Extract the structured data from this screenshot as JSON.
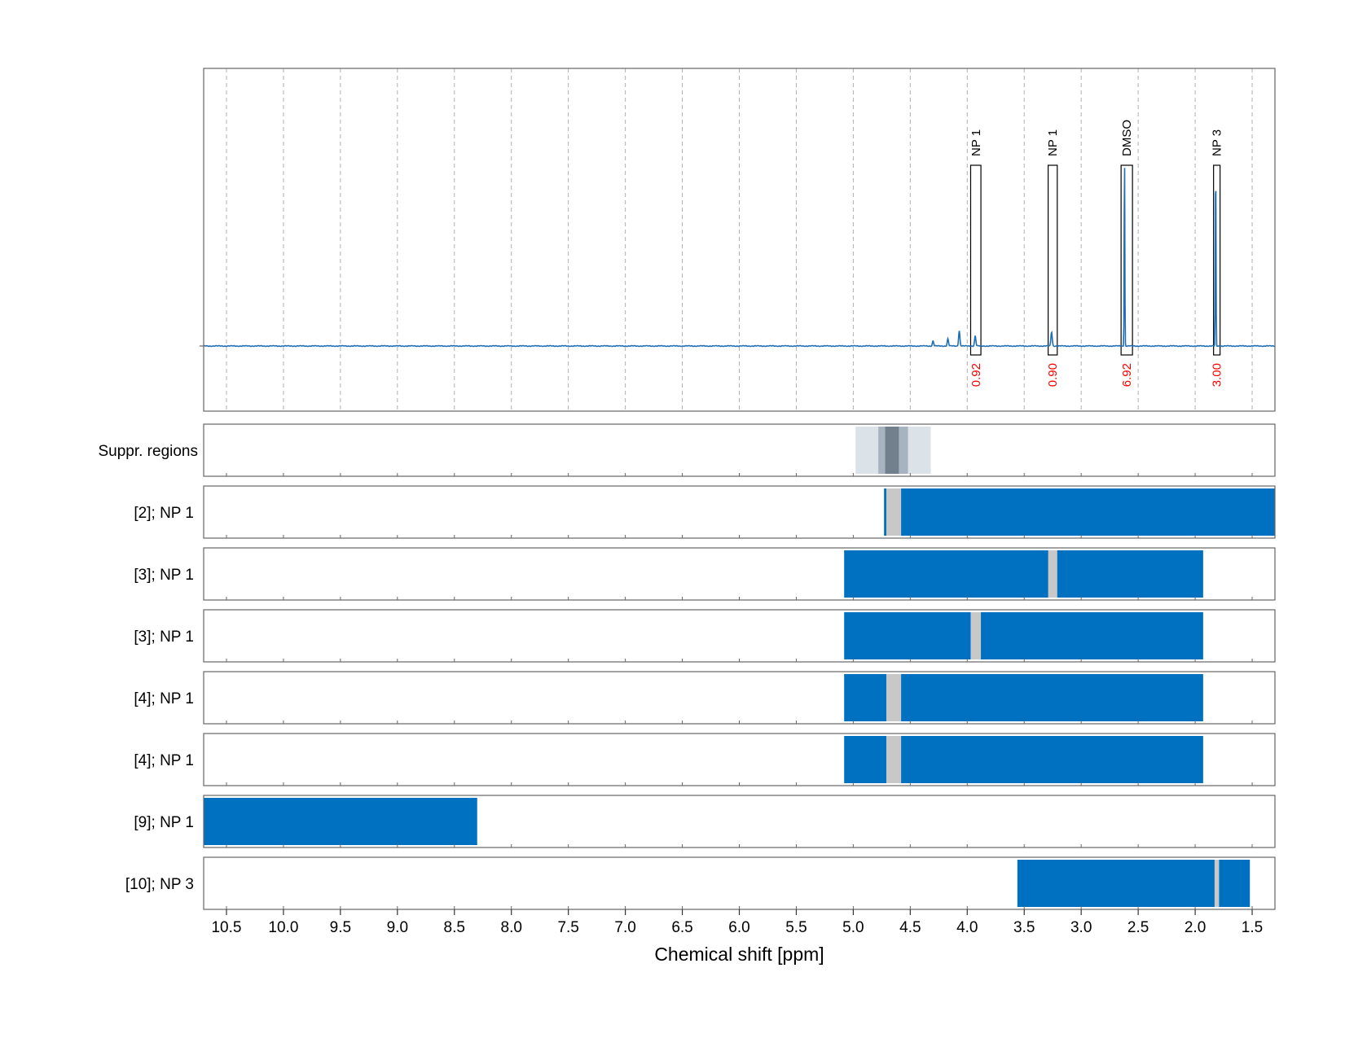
{
  "chart_data": {
    "type": "line",
    "xlabel": "Chemical shift [ppm]",
    "xlim": [
      10.7,
      1.3
    ],
    "x_ticks": [
      "10.5",
      "10.0",
      "9.5",
      "9.0",
      "8.5",
      "8.0",
      "7.5",
      "7.0",
      "6.5",
      "6.0",
      "5.5",
      "5.0",
      "4.5",
      "4.0",
      "3.5",
      "3.0",
      "2.5",
      "2.0",
      "1.5"
    ],
    "grid": "vertical dashed",
    "spectrum": {
      "baseline": 0,
      "peaks": [
        {
          "ppm": 4.3,
          "height": 0.025
        },
        {
          "ppm": 4.17,
          "height": 0.035
        },
        {
          "ppm": 4.07,
          "height": 0.075
        },
        {
          "ppm": 3.93,
          "height": 0.05
        },
        {
          "ppm": 3.26,
          "height": 0.07
        },
        {
          "ppm": 2.62,
          "height": 0.95
        },
        {
          "ppm": 1.82,
          "height": 0.92
        }
      ]
    },
    "annotations": [
      {
        "label": "NP 1",
        "integral": "0.92",
        "range": [
          3.97,
          3.88
        ]
      },
      {
        "label": "NP 1",
        "integral": "0.90",
        "range": [
          3.29,
          3.21
        ]
      },
      {
        "label": "DMSO",
        "integral": "6.92",
        "range": [
          2.65,
          2.55
        ]
      },
      {
        "label": "NP 3",
        "integral": "3.00",
        "range": [
          1.83,
          1.79
        ]
      }
    ],
    "suppressed_regions": {
      "label": "Suppr. regions",
      "bands": [
        {
          "range": [
            4.98,
            4.32
          ],
          "shade": "#dbe2e8"
        },
        {
          "range": [
            4.78,
            4.52
          ],
          "shade": "#a7b3be"
        },
        {
          "range": [
            4.72,
            4.6
          ],
          "shade": "#72808e"
        }
      ]
    },
    "tracks": [
      {
        "label": "[2]; NP 1",
        "range": [
          4.73,
          1.3
        ],
        "gaps": [
          [
            4.71,
            4.58
          ]
        ]
      },
      {
        "label": "[3]; NP 1",
        "range": [
          5.08,
          1.93
        ],
        "gaps": [
          [
            3.29,
            3.21
          ]
        ]
      },
      {
        "label": "[3]; NP 1",
        "range": [
          5.08,
          1.93
        ],
        "gaps": [
          [
            3.97,
            3.88
          ]
        ]
      },
      {
        "label": "[4]; NP 1",
        "range": [
          5.08,
          1.93
        ],
        "gaps": [
          [
            4.71,
            4.58
          ]
        ]
      },
      {
        "label": "[4]; NP 1",
        "range": [
          5.08,
          1.93
        ],
        "gaps": [
          [
            4.71,
            4.58
          ]
        ]
      },
      {
        "label": "[9]; NP 1",
        "range": [
          10.7,
          8.3
        ],
        "gaps": []
      },
      {
        "label": "[10]; NP 3",
        "range": [
          3.56,
          1.52
        ],
        "gaps": [
          [
            1.83,
            1.79
          ]
        ]
      }
    ],
    "colors": {
      "fill": "#0070c0",
      "gap": "#c8c8c8",
      "line": "#1f6fb5",
      "integral": "#ff0000",
      "grid": "#b0b0b0",
      "frame": "#666666"
    }
  }
}
